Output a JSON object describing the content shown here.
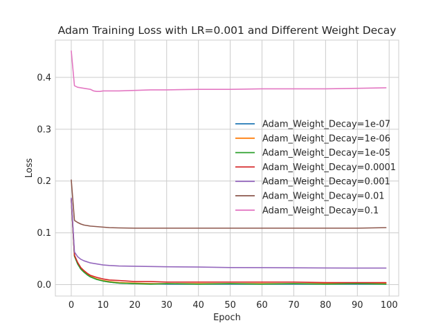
{
  "chart_data": {
    "type": "line",
    "title": "Adam Training Loss with LR=0.001 and Different Weight Decay",
    "xlabel": "Epoch",
    "ylabel": "Loss",
    "xlim": [
      -5,
      103
    ],
    "ylim": [
      -0.022,
      0.472
    ],
    "xticks": [
      0,
      10,
      20,
      30,
      40,
      50,
      60,
      70,
      80,
      90,
      100
    ],
    "yticks": [
      0.0,
      0.1,
      0.2,
      0.3,
      0.4
    ],
    "ytick_labels": [
      "0.0",
      "0.1",
      "0.2",
      "0.3",
      "0.4"
    ],
    "grid": true,
    "legend_position": "center-right",
    "series": [
      {
        "name": "Adam_Weight_Decay=1e-07",
        "color": "#1f77b4",
        "x": [
          0,
          1,
          2,
          3,
          4,
          5,
          6,
          8,
          10,
          12,
          15,
          20,
          25,
          30,
          40,
          50,
          60,
          70,
          80,
          90,
          99
        ],
        "y": [
          0.165,
          0.055,
          0.04,
          0.03,
          0.024,
          0.019,
          0.015,
          0.01,
          0.007,
          0.005,
          0.003,
          0.002,
          0.002,
          0.001,
          0.001,
          0.001,
          0.001,
          0.001,
          0.001,
          0.001,
          0.001
        ]
      },
      {
        "name": "Adam_Weight_Decay=1e-06",
        "color": "#ff7f0e",
        "x": [
          0,
          1,
          2,
          3,
          4,
          5,
          6,
          8,
          10,
          12,
          15,
          20,
          25,
          30,
          40,
          50,
          60,
          70,
          80,
          90,
          99
        ],
        "y": [
          0.163,
          0.056,
          0.041,
          0.031,
          0.025,
          0.02,
          0.016,
          0.011,
          0.008,
          0.006,
          0.004,
          0.003,
          0.002,
          0.002,
          0.002,
          0.002,
          0.002,
          0.002,
          0.002,
          0.002,
          0.002
        ]
      },
      {
        "name": "Adam_Weight_Decay=1e-05",
        "color": "#2ca02c",
        "x": [
          0,
          1,
          2,
          3,
          4,
          5,
          6,
          8,
          10,
          12,
          15,
          20,
          25,
          30,
          40,
          50,
          60,
          70,
          80,
          90,
          99
        ],
        "y": [
          0.164,
          0.055,
          0.04,
          0.03,
          0.024,
          0.019,
          0.015,
          0.01,
          0.007,
          0.005,
          0.003,
          0.002,
          0.001,
          0.002,
          0.001,
          0.002,
          0.001,
          0.002,
          0.001,
          0.002,
          0.001
        ]
      },
      {
        "name": "Adam_Weight_Decay=0.0001",
        "color": "#d62728",
        "x": [
          0,
          1,
          2,
          3,
          4,
          5,
          6,
          8,
          10,
          12,
          15,
          20,
          25,
          30,
          40,
          50,
          60,
          70,
          80,
          90,
          99
        ],
        "y": [
          0.165,
          0.057,
          0.043,
          0.033,
          0.027,
          0.022,
          0.018,
          0.014,
          0.011,
          0.009,
          0.008,
          0.006,
          0.006,
          0.005,
          0.005,
          0.005,
          0.005,
          0.005,
          0.004,
          0.004,
          0.004
        ]
      },
      {
        "name": "Adam_Weight_Decay=0.001",
        "color": "#9467bd",
        "x": [
          0,
          1,
          2,
          3,
          4,
          5,
          6,
          8,
          10,
          12,
          15,
          20,
          25,
          30,
          40,
          50,
          60,
          70,
          80,
          90,
          99
        ],
        "y": [
          0.167,
          0.063,
          0.054,
          0.049,
          0.046,
          0.044,
          0.042,
          0.04,
          0.038,
          0.037,
          0.036,
          0.0355,
          0.035,
          0.0345,
          0.034,
          0.033,
          0.0328,
          0.0325,
          0.0322,
          0.032,
          0.032
        ]
      },
      {
        "name": "Adam_Weight_Decay=0.01",
        "color": "#8c564b",
        "x": [
          0,
          1,
          2,
          3,
          4,
          5,
          6,
          8,
          10,
          12,
          15,
          20,
          25,
          30,
          40,
          50,
          60,
          70,
          80,
          90,
          99
        ],
        "y": [
          0.202,
          0.124,
          0.12,
          0.117,
          0.115,
          0.114,
          0.113,
          0.112,
          0.111,
          0.11,
          0.1095,
          0.109,
          0.109,
          0.109,
          0.109,
          0.109,
          0.109,
          0.109,
          0.109,
          0.109,
          0.11
        ]
      },
      {
        "name": "Adam_Weight_Decay=0.1",
        "color": "#e377c2",
        "x": [
          0,
          1,
          2,
          3,
          4,
          5,
          6,
          7,
          8,
          9,
          10,
          12,
          15,
          20,
          25,
          30,
          40,
          50,
          60,
          70,
          80,
          90,
          99
        ],
        "y": [
          0.451,
          0.384,
          0.381,
          0.38,
          0.379,
          0.378,
          0.377,
          0.374,
          0.373,
          0.373,
          0.374,
          0.374,
          0.374,
          0.375,
          0.376,
          0.376,
          0.377,
          0.377,
          0.378,
          0.378,
          0.378,
          0.379,
          0.38
        ]
      }
    ]
  }
}
